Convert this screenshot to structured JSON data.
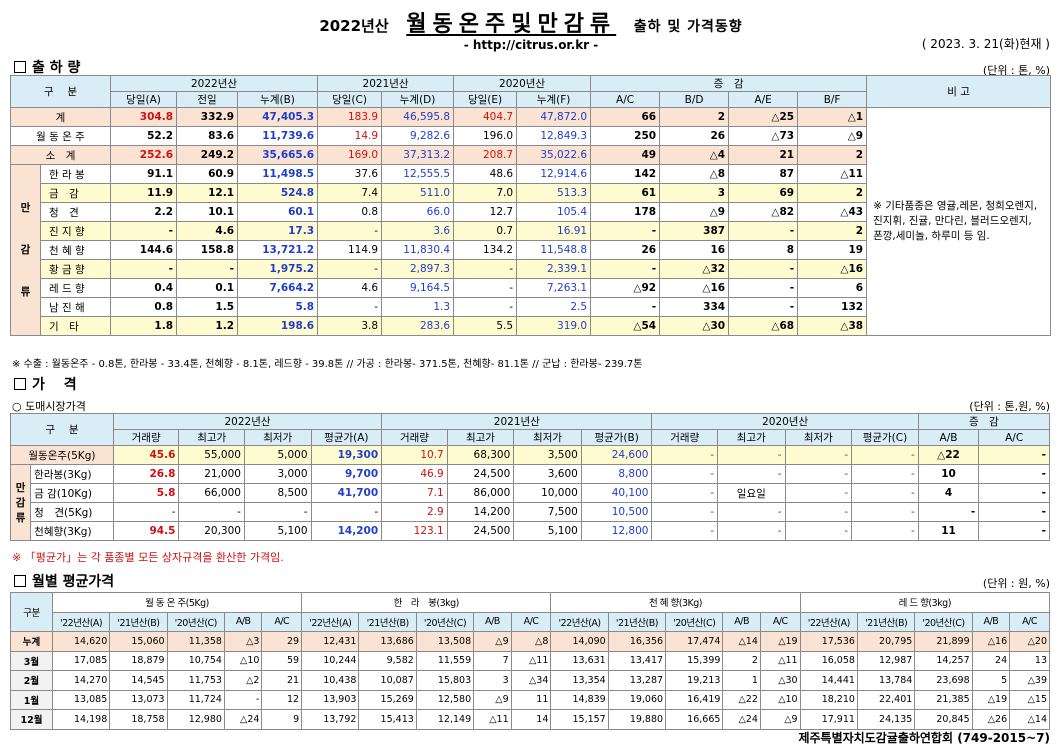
{
  "header": {
    "year": "2022년산",
    "title": "월동온주및만감류",
    "subtitle": "출하 및 가격동향",
    "url": "- http://citrus.or.kr -",
    "date": "( 2023. 3. 21(화)현재 )"
  },
  "s1": {
    "title": "출 하 량",
    "unit": "(단위 : 톤, %)",
    "h_gubun": "구　 분",
    "h_2022": "2022년산",
    "h_2021": "2021년산",
    "h_2020": "2020년산",
    "h_inc": "증　감",
    "h_bigo": "비 고",
    "sub": [
      "당일(A)",
      "전일",
      "누계(B)",
      "당일(C)",
      "누계(D)",
      "당일(E)",
      "누계(F)",
      "A/C",
      "B/D",
      "A/E",
      "B/F"
    ],
    "group_label": [
      "만",
      "감",
      "류"
    ],
    "rows": [
      {
        "name": "계",
        "v": [
          "304.8",
          "332.9",
          "47,405.3",
          "183.9",
          "46,595.8",
          "404.7",
          "47,872.0",
          "66",
          "2",
          "△25",
          "△1"
        ]
      },
      {
        "name": "월 동 온 주",
        "v": [
          "52.2",
          "83.6",
          "11,739.6",
          "14.9",
          "9,282.6",
          "196.0",
          "12,849.3",
          "250",
          "26",
          "△73",
          "△9"
        ]
      },
      {
        "name": "소　계",
        "v": [
          "252.6",
          "249.2",
          "35,665.6",
          "169.0",
          "37,313.2",
          "208.7",
          "35,022.6",
          "49",
          "△4",
          "21",
          "2"
        ]
      },
      {
        "name": "한 라 봉",
        "v": [
          "91.1",
          "60.9",
          "11,498.5",
          "37.6",
          "12,555.5",
          "48.6",
          "12,914.6",
          "142",
          "△8",
          "87",
          "△11"
        ]
      },
      {
        "name": "금　감",
        "v": [
          "11.9",
          "12.1",
          "524.8",
          "7.4",
          "511.0",
          "7.0",
          "513.3",
          "61",
          "3",
          "69",
          "2"
        ]
      },
      {
        "name": "청　견",
        "v": [
          "2.2",
          "10.1",
          "60.1",
          "0.8",
          "66.0",
          "12.7",
          "105.4",
          "178",
          "△9",
          "△82",
          "△43"
        ]
      },
      {
        "name": "진 지 향",
        "v": [
          "-",
          "4.6",
          "17.3",
          "-",
          "3.6",
          "0.7",
          "16.91",
          "-",
          "387",
          "-",
          "2"
        ]
      },
      {
        "name": "천 혜 향",
        "v": [
          "144.6",
          "158.8",
          "13,721.2",
          "114.9",
          "11,830.4",
          "134.2",
          "11,548.8",
          "26",
          "16",
          "8",
          "19"
        ]
      },
      {
        "name": "황 금 향",
        "v": [
          "-",
          "-",
          "1,975.2",
          "-",
          "2,897.3",
          "-",
          "2,339.1",
          "-",
          "△32",
          "-",
          "△16"
        ]
      },
      {
        "name": "레 드 향",
        "v": [
          "0.4",
          "0.1",
          "7,664.2",
          "4.6",
          "9,164.5",
          "-",
          "7,263.1",
          "△92",
          "△16",
          "-",
          "6"
        ]
      },
      {
        "name": "남 진 해",
        "v": [
          "0.8",
          "1.5",
          "5.8",
          "-",
          "1.3",
          "-",
          "2.5",
          "-",
          "334",
          "-",
          "132"
        ]
      },
      {
        "name": "기　타",
        "v": [
          "1.8",
          "1.2",
          "198.6",
          "3.8",
          "283.6",
          "5.5",
          "319.0",
          "△54",
          "△30",
          "△68",
          "△38"
        ]
      }
    ],
    "remark": "※ 기타품종은 영귤,레몬, 청희오렌지, 진지휘, 진귤, 만다린, 블러드오렌지, 폰깡,세미놀, 하루미 등 임.",
    "note": "※ 수출 : 월동온주 - 0.8톤, 한라봉 - 33.4톤, 천혜향 - 8.1톤, 레드향 - 39.8톤  //  가공  :  한라봉- 371.5톤, 천혜향- 81.1톤  //  군납 : 한라봉- 239.7톤"
  },
  "s2": {
    "title": "가　 격",
    "market": "○ 도매시장가격",
    "unit": "(단위 : 톤,원, %)",
    "h_gubun": "구　 분",
    "h_2022": "2022년산",
    "h_2021": "2021년산",
    "h_2020": "2020년산",
    "h_inc": "증　감",
    "sub": [
      "거래량",
      "최고가",
      "최저가",
      "평균가(A)",
      "거래량",
      "최고가",
      "최저가",
      "평균가(B)",
      "거래량",
      "최고가",
      "최저가",
      "평균가(C)",
      "A/B",
      "A/C"
    ],
    "group_label": [
      "만",
      "감",
      "류"
    ],
    "rows": [
      {
        "name": "월동온주(5Kg)",
        "v": [
          "45.6",
          "55,000",
          "5,000",
          "19,300",
          "10.7",
          "68,300",
          "3,500",
          "24,600",
          "-",
          "-",
          "-",
          "-",
          "△22",
          "-"
        ]
      },
      {
        "name": "한라봉(3Kg)",
        "v": [
          "26.8",
          "21,000",
          "3,000",
          "9,700",
          "46.9",
          "24,500",
          "3,600",
          "8,800",
          "-",
          "-",
          "-",
          "-",
          "10",
          "-"
        ]
      },
      {
        "name": "금 감(10Kg)",
        "v": [
          "5.8",
          "66,000",
          "8,500",
          "41,700",
          "7.1",
          "86,000",
          "10,000",
          "40,100",
          "-",
          "일요일",
          "-",
          "-",
          "4",
          "-"
        ]
      },
      {
        "name": "청　견(5Kg)",
        "v": [
          "-",
          "-",
          "-",
          "-",
          "2.9",
          "14,200",
          "7,500",
          "10,500",
          "-",
          "-",
          "-",
          "-",
          "-",
          "-"
        ]
      },
      {
        "name": "천혜향(3Kg)",
        "v": [
          "94.5",
          "20,300",
          "5,100",
          "14,200",
          "123.1",
          "24,500",
          "5,100",
          "12,800",
          "-",
          "-",
          "-",
          "-",
          "11",
          "-"
        ]
      }
    ],
    "note": "※ 「평균가」는 각 품종별 모든 상자규격을 환산한 가격임."
  },
  "s3": {
    "title": "월별 평균가격",
    "unit": "(단위 : 원, %)",
    "h_gubun": "구분",
    "groups": [
      "월 동 온 주(5Kg)",
      "한　라　봉(3kg)",
      "천 혜 향(3Kg)",
      "레 드 향(3kg)"
    ],
    "sub": [
      "'22년산(A)",
      "'21년산(B)",
      "'20년산(C)",
      "A/B",
      "A/C"
    ],
    "rows": [
      {
        "name": "누계",
        "v": [
          "14,620",
          "15,060",
          "11,358",
          "△3",
          "29",
          "12,431",
          "13,686",
          "13,508",
          "△9",
          "△8",
          "14,090",
          "16,356",
          "17,474",
          "△14",
          "△19",
          "17,536",
          "20,795",
          "21,899",
          "△16",
          "△20"
        ]
      },
      {
        "name": "3월",
        "v": [
          "17,085",
          "18,879",
          "10,754",
          "△10",
          "59",
          "10,244",
          "9,582",
          "11,559",
          "7",
          "△11",
          "13,631",
          "13,417",
          "15,399",
          "2",
          "△11",
          "16,058",
          "12,987",
          "14,257",
          "24",
          "13"
        ]
      },
      {
        "name": "2월",
        "v": [
          "14,270",
          "14,545",
          "11,753",
          "△2",
          "21",
          "10,438",
          "10,087",
          "15,803",
          "3",
          "△34",
          "13,354",
          "13,287",
          "19,213",
          "1",
          "△30",
          "14,441",
          "13,784",
          "23,698",
          "5",
          "△39"
        ]
      },
      {
        "name": "1월",
        "v": [
          "13,085",
          "13,073",
          "11,724",
          "-",
          "12",
          "13,903",
          "15,269",
          "12,580",
          "△9",
          "11",
          "14,839",
          "19,060",
          "16,419",
          "△22",
          "△10",
          "18,210",
          "22,401",
          "21,385",
          "△19",
          "△15"
        ]
      },
      {
        "name": "12월",
        "v": [
          "14,198",
          "18,758",
          "12,980",
          "△24",
          "9",
          "13,792",
          "15,413",
          "12,149",
          "△11",
          "14",
          "15,157",
          "19,880",
          "16,665",
          "△24",
          "△9",
          "17,911",
          "24,135",
          "20,845",
          "△26",
          "△14"
        ]
      }
    ]
  },
  "footer": "제주특별자치도감귤출하연합회 (749-2015~7)"
}
